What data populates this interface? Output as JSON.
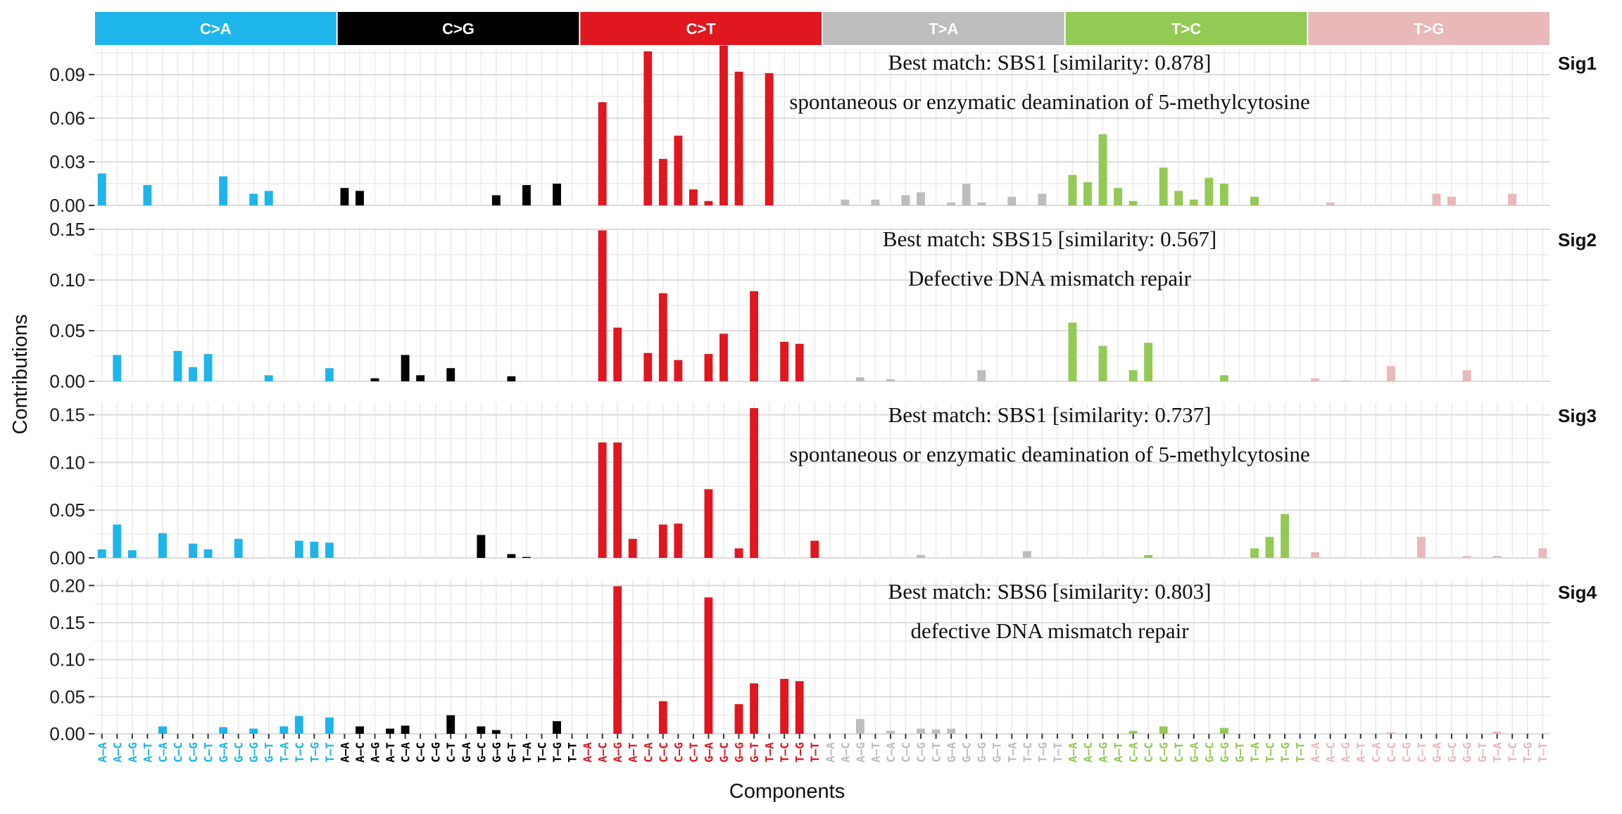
{
  "chart_data": {
    "type": "bar",
    "xlabel": "Components",
    "ylabel": "Contributions",
    "grid": true,
    "groups": [
      {
        "name": "C>A",
        "color": "#1EB5EA",
        "text_color": "#ffffff"
      },
      {
        "name": "C>G",
        "color": "#000000",
        "text_color": "#ffffff"
      },
      {
        "name": "C>T",
        "color": "#E0171F",
        "text_color": "#ffffff"
      },
      {
        "name": "T>A",
        "color": "#BDBDBD",
        "text_color": "#ffffff"
      },
      {
        "name": "T>C",
        "color": "#93C955",
        "text_color": "#ffffff"
      },
      {
        "name": "T>G",
        "color": "#E9B8B8",
        "text_color": "#ffffff"
      }
    ],
    "contexts": [
      "A–A",
      "A–C",
      "A–G",
      "A–T",
      "C–A",
      "C–C",
      "C–G",
      "C–T",
      "G–A",
      "G–C",
      "G–G",
      "G–T",
      "T–A",
      "T–C",
      "T–G",
      "T–T"
    ],
    "panels": [
      {
        "name": "Sig1",
        "annotation_match": "Best match: SBS1 [similarity: 0.878]",
        "annotation_desc": "spontaneous or enzymatic deamination of 5-methylcytosine",
        "ylim": [
          0,
          0.105
        ],
        "yticks": [
          0.0,
          0.03,
          0.06,
          0.09
        ],
        "ytick_labels": [
          "0.00",
          "0.03",
          "0.06",
          "0.09"
        ],
        "values": [
          0.022,
          0,
          0,
          0.014,
          0,
          0,
          0,
          0,
          0.02,
          0,
          0.008,
          0.01,
          0,
          0,
          0,
          0,
          0.012,
          0.01,
          0,
          0,
          0,
          0,
          0,
          0,
          0,
          0,
          0.007,
          0,
          0.014,
          0,
          0.015,
          0,
          0,
          0.071,
          0,
          0,
          0.106,
          0.032,
          0.048,
          0.011,
          0.003,
          0.11,
          0.092,
          0,
          0.091,
          0,
          0,
          0,
          0,
          0.004,
          0,
          0.004,
          0,
          0.007,
          0.009,
          0,
          0.002,
          0.015,
          0.002,
          0,
          0.006,
          0,
          0.008,
          0,
          0.021,
          0.016,
          0.049,
          0.012,
          0.003,
          0,
          0.026,
          0.01,
          0.004,
          0.019,
          0.015,
          0,
          0.006,
          0,
          0,
          0,
          0,
          0.002,
          0,
          0,
          0,
          0,
          0,
          0,
          0.008,
          0.006,
          0,
          0,
          0,
          0.008,
          0,
          0
        ]
      },
      {
        "name": "Sig2",
        "annotation_match": "Best match: SBS15 [similarity: 0.567]",
        "annotation_desc": "Defective DNA mismatch repair",
        "ylim": [
          0,
          0.15
        ],
        "yticks": [
          0.0,
          0.05,
          0.1,
          0.15
        ],
        "ytick_labels": [
          "0.00",
          "0.05",
          "0.10",
          "0.15"
        ],
        "values": [
          0,
          0.026,
          0,
          0,
          0,
          0.03,
          0.014,
          0.027,
          0,
          0,
          0,
          0.006,
          0,
          0,
          0,
          0.013,
          0,
          0,
          0.003,
          0,
          0.026,
          0.006,
          0,
          0.013,
          0,
          0,
          0,
          0.005,
          0,
          0,
          0,
          0,
          0,
          0.149,
          0.053,
          0,
          0.028,
          0.087,
          0.021,
          0,
          0.027,
          0.047,
          0,
          0.089,
          0,
          0.039,
          0.037,
          0,
          0,
          0,
          0.004,
          0,
          0.002,
          0,
          0,
          0,
          0,
          0,
          0.011,
          0,
          0,
          0,
          0,
          0,
          0.058,
          0,
          0.035,
          0,
          0.011,
          0.038,
          0,
          0,
          0,
          0,
          0.006,
          0,
          0,
          0,
          0,
          0,
          0.003,
          0,
          0.001,
          0,
          0,
          0.015,
          0,
          0,
          0,
          0,
          0.011,
          0,
          0,
          0,
          0,
          0
        ]
      },
      {
        "name": "Sig3",
        "annotation_match": "Best match: SBS1 [similarity: 0.737]",
        "annotation_desc": "spontaneous or enzymatic deamination of 5-methylcytosine",
        "ylim": [
          0,
          0.16
        ],
        "yticks": [
          0.0,
          0.05,
          0.1,
          0.15
        ],
        "ytick_labels": [
          "0.00",
          "0.05",
          "0.10",
          "0.15"
        ],
        "values": [
          0.009,
          0.035,
          0.008,
          0,
          0.026,
          0,
          0.015,
          0.009,
          0,
          0.02,
          0,
          0,
          0,
          0.018,
          0.017,
          0.016,
          0,
          0,
          0,
          0,
          0,
          0,
          0,
          0,
          0,
          0.024,
          0,
          0.004,
          0.001,
          0,
          0,
          0,
          0,
          0.121,
          0.121,
          0.02,
          0,
          0.035,
          0.036,
          0,
          0.072,
          0,
          0.01,
          0.157,
          0,
          0,
          0,
          0.018,
          0,
          0,
          0,
          0,
          0,
          0,
          0.003,
          0,
          0,
          0,
          0,
          0,
          0,
          0.007,
          0,
          0,
          0,
          0,
          0,
          0,
          0,
          0.003,
          0,
          0,
          0,
          0,
          0,
          0,
          0.01,
          0.022,
          0.046,
          0,
          0.006,
          0,
          0,
          0,
          0,
          0,
          0,
          0.022,
          0,
          0,
          0.002,
          0,
          0.002,
          0,
          0,
          0.01
        ]
      },
      {
        "name": "Sig4",
        "annotation_match": "Best match: SBS6 [similarity: 0.803]",
        "annotation_desc": "defective DNA mismatch repair",
        "ylim": [
          0,
          0.205
        ],
        "yticks": [
          0.0,
          0.05,
          0.1,
          0.15,
          0.2
        ],
        "ytick_labels": [
          "0.00",
          "0.05",
          "0.10",
          "0.15",
          "0.20"
        ],
        "values": [
          0,
          0,
          0,
          0,
          0.01,
          0,
          0,
          0,
          0.009,
          0,
          0.007,
          0,
          0.01,
          0.024,
          0,
          0.022,
          0,
          0.01,
          0,
          0.007,
          0.011,
          0,
          0,
          0.025,
          0,
          0.01,
          0.005,
          0,
          0,
          0,
          0.017,
          0,
          0,
          0,
          0.199,
          0,
          0,
          0.044,
          0,
          0,
          0.184,
          0,
          0.04,
          0.068,
          0,
          0.074,
          0.071,
          0,
          0,
          0,
          0.02,
          0,
          0.004,
          0,
          0.007,
          0.006,
          0.007,
          0,
          0.001,
          0,
          0,
          0,
          0,
          0,
          0,
          0,
          0,
          0,
          0.004,
          0,
          0.01,
          0,
          0,
          0,
          0.008,
          0,
          0,
          0,
          0,
          0,
          0,
          0,
          0,
          0,
          0,
          0.002,
          0,
          0,
          0,
          0,
          0,
          0,
          0.003,
          0,
          0,
          0
        ]
      }
    ]
  }
}
